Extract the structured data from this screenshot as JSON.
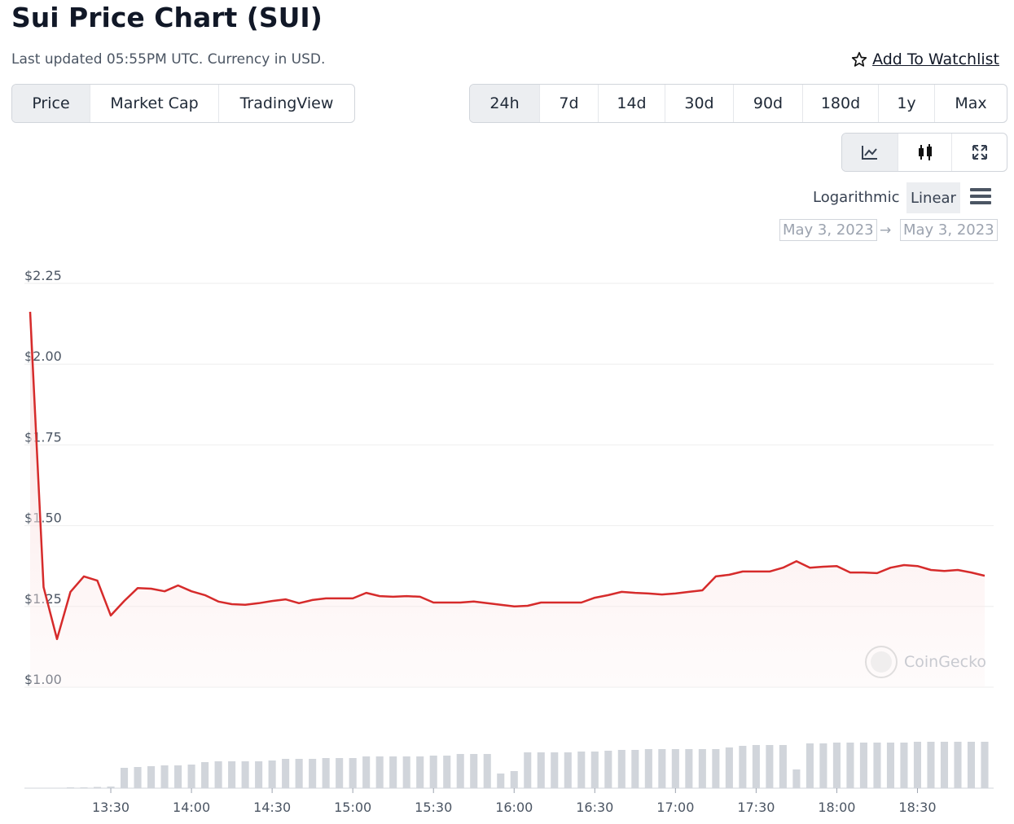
{
  "page": {
    "updated": "Last updated 05:55PM UTC. Currency in USD.",
    "watchlist": "Add To Watchlist",
    "tabs": [
      "Price",
      "Market Cap",
      "TradingView"
    ],
    "ranges": [
      "24h",
      "7d",
      "14d",
      "30d",
      "90d",
      "180d",
      "1y",
      "Max"
    ],
    "scales": [
      "Logarithmic",
      "Linear"
    ],
    "date_from": "May 3, 2023",
    "date_arrow": "→",
    "date_to": "May 3, 2023",
    "watermark": "CoinGecko"
  },
  "chart_data": {
    "type": "line",
    "title": "Sui Price Chart (SUI)",
    "x": [
      "13:00",
      "13:05",
      "13:10",
      "13:15",
      "13:20",
      "13:25",
      "13:30",
      "13:35",
      "13:40",
      "13:45",
      "13:50",
      "13:55",
      "14:00",
      "14:05",
      "14:10",
      "14:15",
      "14:20",
      "14:25",
      "14:30",
      "14:35",
      "14:40",
      "14:45",
      "14:50",
      "14:55",
      "15:00",
      "15:05",
      "15:10",
      "15:15",
      "15:20",
      "15:25",
      "15:30",
      "15:35",
      "15:40",
      "15:45",
      "15:50",
      "15:55",
      "16:00",
      "16:05",
      "16:10",
      "16:15",
      "16:20",
      "16:25",
      "16:30",
      "16:35",
      "16:40",
      "16:45",
      "16:50",
      "16:55",
      "17:00",
      "17:05",
      "17:10",
      "17:15",
      "17:20",
      "17:25",
      "17:30",
      "17:35",
      "17:40",
      "17:45",
      "17:50",
      "17:55",
      "18:00",
      "18:05",
      "18:10",
      "18:15",
      "18:20",
      "18:25",
      "18:30",
      "18:35",
      "18:40",
      "18:45",
      "18:50",
      "18:55"
    ],
    "series": [
      {
        "name": "Price",
        "color": "#d62b2b",
        "values": [
          2.162,
          1.31,
          1.149,
          1.295,
          1.343,
          1.33,
          1.222,
          1.267,
          1.307,
          1.305,
          1.297,
          1.315,
          1.297,
          1.285,
          1.265,
          1.257,
          1.255,
          1.26,
          1.267,
          1.272,
          1.26,
          1.27,
          1.275,
          1.275,
          1.275,
          1.292,
          1.282,
          1.28,
          1.282,
          1.28,
          1.262,
          1.262,
          1.262,
          1.265,
          1.26,
          1.255,
          1.25,
          1.252,
          1.262,
          1.262,
          1.262,
          1.262,
          1.277,
          1.285,
          1.295,
          1.292,
          1.29,
          1.287,
          1.29,
          1.295,
          1.3,
          1.343,
          1.348,
          1.358,
          1.358,
          1.358,
          1.37,
          1.39,
          1.37,
          1.373,
          1.375,
          1.355,
          1.355,
          1.353,
          1.37,
          1.378,
          1.375,
          1.363,
          1.36,
          1.363,
          1.355,
          1.345
        ]
      },
      {
        "name": "Volume",
        "color": "#d1d5db",
        "values": [
          0,
          0,
          0,
          1,
          1,
          1.5,
          2,
          25,
          26,
          27,
          28,
          28,
          29,
          32,
          33,
          33,
          33,
          33,
          34,
          36,
          36,
          36,
          37,
          37,
          37,
          39,
          39,
          39,
          39,
          39,
          40,
          40,
          42,
          42,
          42,
          18,
          21,
          44,
          44,
          44,
          44,
          45,
          45,
          46,
          47,
          47,
          48,
          48,
          48,
          48,
          48,
          48,
          50,
          52,
          53,
          53,
          53,
          23,
          55,
          55,
          56,
          56,
          56,
          56,
          56,
          56,
          57,
          57,
          57,
          57,
          57,
          57
        ]
      }
    ],
    "xlim": [
      "13:00",
      "18:55"
    ],
    "xticks": [
      "13:30",
      "14:00",
      "14:30",
      "15:00",
      "15:30",
      "16:00",
      "16:30",
      "17:00",
      "17:30",
      "18:00",
      "18:30"
    ],
    "ylim": [
      1.0,
      2.25
    ],
    "yticks": [
      {
        "value": 1.0,
        "label": "$1.00"
      },
      {
        "value": 1.25,
        "label": "$1.25"
      },
      {
        "value": 1.5,
        "label": "$1.50"
      },
      {
        "value": 1.75,
        "label": "$1.75"
      },
      {
        "value": 2.0,
        "label": "$2.00"
      },
      {
        "value": 2.25,
        "label": "$2.25"
      }
    ],
    "grid": true
  }
}
